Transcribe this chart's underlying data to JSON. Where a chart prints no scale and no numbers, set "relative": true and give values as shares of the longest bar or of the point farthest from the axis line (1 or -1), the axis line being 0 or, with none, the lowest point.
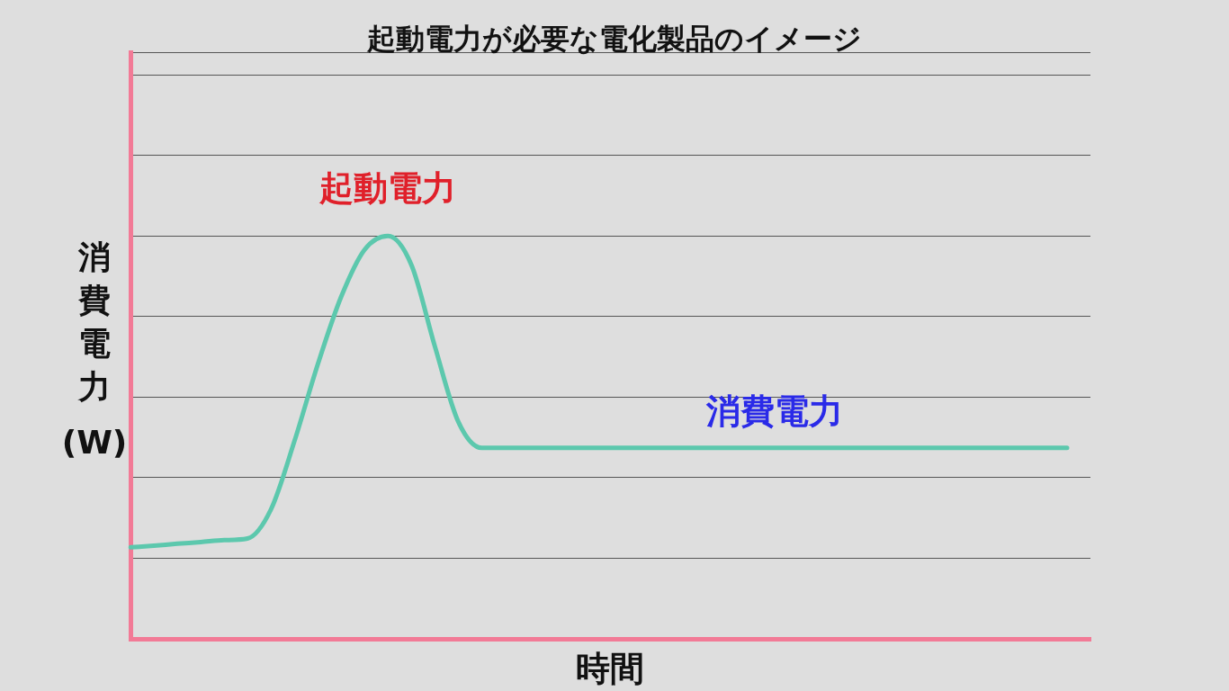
{
  "chart_data": {
    "type": "line",
    "title": "起動電力が必要な電化製品のイメージ",
    "xlabel": "時間",
    "ylabel": "消費電力(W)",
    "relative": true,
    "grid": "y",
    "legend": false,
    "marker": "none",
    "line_style": "solid",
    "categories": [
      null,
      null,
      null,
      null,
      null,
      null,
      null,
      null,
      null,
      null,
      null,
      null,
      null,
      null,
      null,
      null,
      null,
      null,
      null,
      null,
      null,
      null,
      null,
      null,
      null,
      null,
      null,
      null,
      null,
      null,
      null,
      null,
      null,
      null,
      null,
      null,
      null,
      null,
      null,
      null,
      null,
      null
    ],
    "series": [
      {
        "color": "#5cc8ad",
        "values": [
          0.227,
          0.231,
          0.236,
          0.24,
          0.245,
          0.249,
          0.321,
          0.49,
          0.681,
          0.849,
          0.966,
          1,
          0.928,
          0.726,
          0.539,
          0.474,
          0.474,
          0.474,
          0.474,
          0.474,
          0.474,
          0.474,
          0.474,
          0.474,
          0.474,
          0.474,
          0.474,
          0.474,
          0.474,
          0.474,
          0.474,
          0.474,
          0.474,
          0.474,
          0.474,
          0.474,
          0.474,
          0.474,
          0.474,
          0.474,
          0.474,
          null
        ]
      }
    ],
    "annotations": [
      "起動電力",
      "消費電力"
    ]
  }
}
